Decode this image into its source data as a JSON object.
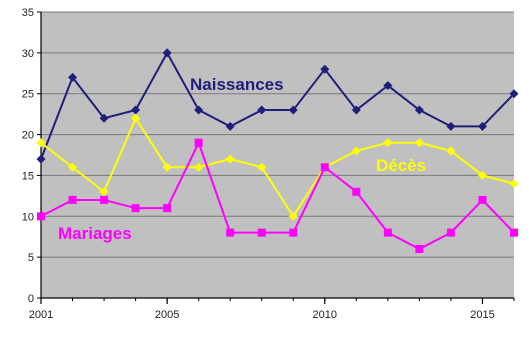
{
  "chart_data": {
    "type": "line",
    "title": "",
    "xlabel": "",
    "ylabel": "",
    "x": [
      2001,
      2002,
      2003,
      2004,
      2005,
      2006,
      2007,
      2008,
      2009,
      2010,
      2011,
      2012,
      2013,
      2014,
      2015,
      2016
    ],
    "xlim": [
      2001,
      2016
    ],
    "ylim": [
      0,
      35
    ],
    "x_ticks": [
      "2001",
      "2005",
      "2010",
      "2015"
    ],
    "y_ticks": [
      "0",
      "5",
      "10",
      "15",
      "20",
      "25",
      "30",
      "35"
    ],
    "grid": "horizontal",
    "plot_background": "#c0c0c0",
    "series": [
      {
        "name": "Naissances",
        "color": "#1f1f7a",
        "marker": "diamond",
        "values": [
          17,
          27,
          22,
          23,
          30,
          23,
          21,
          23,
          23,
          28,
          23,
          26,
          23,
          21,
          21,
          25
        ]
      },
      {
        "name": "Décès",
        "color": "#ffff00",
        "marker": "diamond",
        "values": [
          19,
          16,
          13,
          22,
          16,
          16,
          17,
          16,
          10,
          16,
          18,
          19,
          19,
          18,
          15,
          14
        ]
      },
      {
        "name": "Mariages",
        "color": "#ff00ff",
        "marker": "square",
        "values": [
          10,
          12,
          12,
          11,
          11,
          19,
          8,
          8,
          8,
          16,
          13,
          8,
          6,
          8,
          12,
          8
        ]
      }
    ]
  }
}
